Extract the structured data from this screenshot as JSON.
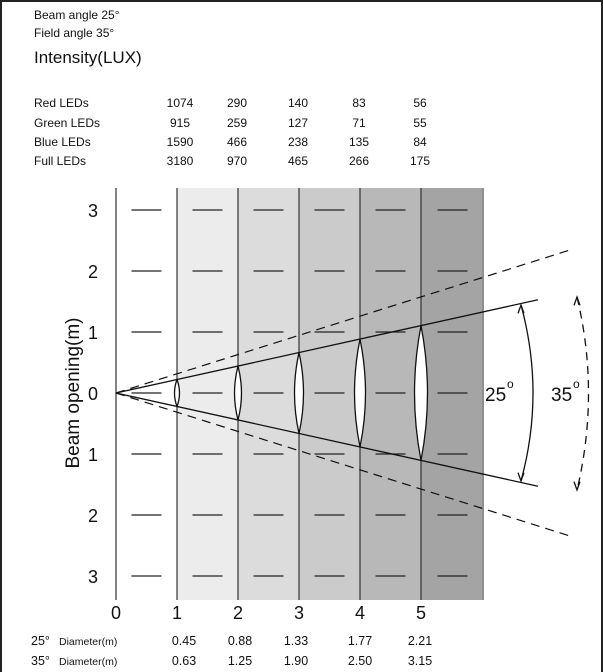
{
  "header": {
    "beam_angle": "Beam angle 25°",
    "field_angle": "Field angle 35°",
    "intensity_title": "Intensity(LUX)"
  },
  "intensity_table": {
    "rows": [
      {
        "label": "Red LEDs",
        "values": [
          "1074",
          "290",
          "140",
          "83",
          "56"
        ]
      },
      {
        "label": "Green LEDs",
        "values": [
          "915",
          "259",
          "127",
          "71",
          "55"
        ]
      },
      {
        "label": "Blue LEDs",
        "values": [
          "1590",
          "466",
          "238",
          "135",
          "84"
        ]
      },
      {
        "label": "Full LEDs",
        "values": [
          "3180",
          "970",
          "465",
          "266",
          "175"
        ]
      }
    ]
  },
  "diagram": {
    "y_axis_label": "Beam opening(m)",
    "y_ticks": [
      "3",
      "2",
      "1",
      "0",
      "1",
      "2",
      "3"
    ],
    "x_ticks": [
      "0",
      "1",
      "2",
      "3",
      "4",
      "5"
    ],
    "beam_angle_label": "25",
    "field_angle_label": "35",
    "degree_mark": "o",
    "band_colors": [
      "#ececec",
      "#dcdcdc",
      "#cbcbcb",
      "#b8b8b8",
      "#a4a4a4",
      "#8e8e8e"
    ]
  },
  "diameters": {
    "rows": [
      {
        "angle": "25°",
        "label": "Diameter(m)",
        "values": [
          "0.45",
          "0.88",
          "1.33",
          "1.77",
          "2.21"
        ]
      },
      {
        "angle": "35°",
        "label": "Diameter(m)",
        "values": [
          "0.63",
          "1.25",
          "1.90",
          "2.50",
          "3.15"
        ]
      }
    ]
  }
}
